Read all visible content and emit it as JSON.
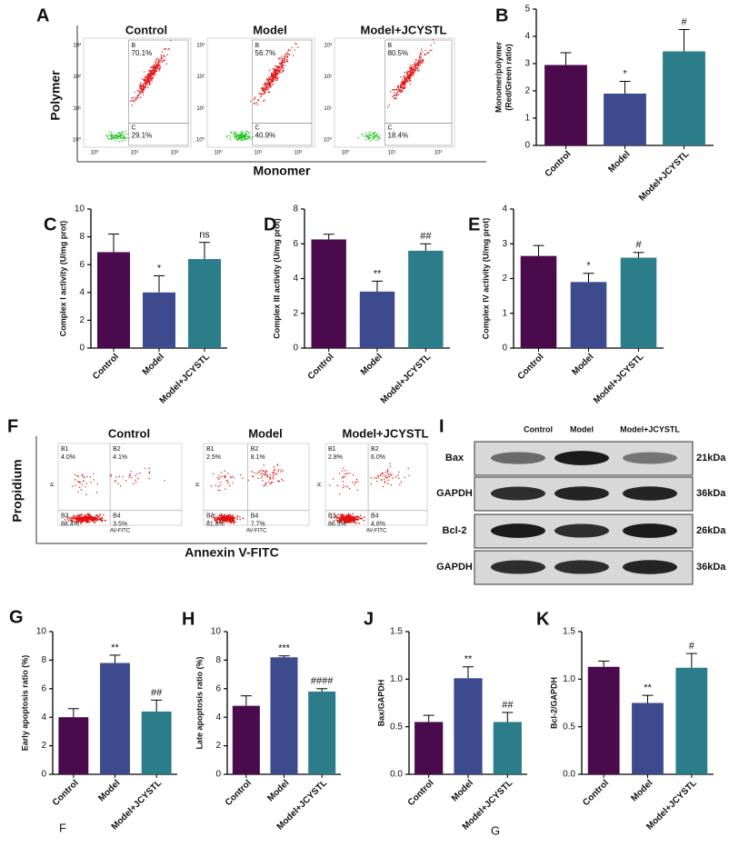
{
  "flow_polymer": {
    "letter": "A",
    "y_label": "Polymer",
    "x_label": "Monomer",
    "axis_ticks": [
      "10⁰",
      "10¹",
      "10²",
      "10³"
    ],
    "plots": [
      {
        "title": "Control",
        "gates": [
          {
            "name": "B",
            "value": "70.1%"
          },
          {
            "name": "C",
            "value": "29.1%"
          }
        ]
      },
      {
        "title": "Model",
        "gates": [
          {
            "name": "B",
            "value": "56.7%"
          },
          {
            "name": "C",
            "value": "40.9%"
          }
        ]
      },
      {
        "title": "Model+JCYSTL",
        "gates": [
          {
            "name": "B",
            "value": "80.5%"
          },
          {
            "name": "C",
            "value": "18.4%"
          }
        ]
      }
    ]
  },
  "flow_apoptosis": {
    "letter": "F",
    "y_label": "Propidium",
    "x_label": "Annexin V-FITC",
    "plot_y_label": "PI",
    "plot_x_label": "AV-FITC",
    "plots": [
      {
        "title": "Control",
        "quadrants": [
          {
            "name": "B1",
            "value": "4.0%"
          },
          {
            "name": "B2",
            "value": "4.1%"
          },
          {
            "name": "B3",
            "value": "88.4%"
          },
          {
            "name": "B4",
            "value": "3.5%"
          }
        ]
      },
      {
        "title": "Model",
        "quadrants": [
          {
            "name": "B1",
            "value": "2.5%"
          },
          {
            "name": "B2",
            "value": "8.1%"
          },
          {
            "name": "B3",
            "value": "81.8%"
          },
          {
            "name": "B4",
            "value": "7.7%"
          }
        ]
      },
      {
        "title": "Model+JCYSTL",
        "quadrants": [
          {
            "name": "B1",
            "value": "2.8%"
          },
          {
            "name": "B2",
            "value": "6.0%"
          },
          {
            "name": "B3",
            "value": "86.5%"
          },
          {
            "name": "B4",
            "value": "4.8%"
          }
        ]
      }
    ]
  },
  "western_blot": {
    "letter": "I",
    "lanes": [
      "Control",
      "Model",
      "Model+JCYSTL"
    ],
    "rows": [
      {
        "protein": "Bax",
        "size": "21kDa"
      },
      {
        "protein": "GAPDH",
        "size": "36kDa"
      },
      {
        "protein": "Bcl-2",
        "size": "26kDa"
      },
      {
        "protein": "GAPDH",
        "size": "36kDa"
      }
    ]
  },
  "captions": [
    "F",
    "G"
  ],
  "chart_data": [
    {
      "type": "bar",
      "letter": "B",
      "ylabel": [
        "Monomer/polymer",
        "(Red/Green ratio)"
      ],
      "categories": [
        "Control",
        "Model",
        "Model+JCYSTL"
      ],
      "values": [
        2.95,
        1.9,
        3.45
      ],
      "errors": [
        0.45,
        0.45,
        0.8
      ],
      "annotations": [
        null,
        "*",
        "#"
      ],
      "colors": [
        "#4a0a4c",
        "#3e4a8e",
        "#2b7d8a"
      ],
      "ylim": [
        0,
        5
      ],
      "yticks": [
        0,
        1,
        2,
        3,
        4,
        5
      ]
    },
    {
      "type": "bar",
      "letter": "C",
      "ylabel": [
        "Complex I activity  (U/mg prot)"
      ],
      "categories": [
        "Control",
        "Model",
        "Model+JCYSTL"
      ],
      "values": [
        6.9,
        4.0,
        6.4
      ],
      "errors": [
        1.3,
        1.2,
        1.2
      ],
      "annotations": [
        null,
        "*",
        "ns"
      ],
      "colors": [
        "#4a0a4c",
        "#3e4a8e",
        "#2b7d8a"
      ],
      "ylim": [
        0,
        10
      ],
      "yticks": [
        0,
        2,
        4,
        6,
        8,
        10
      ]
    },
    {
      "type": "bar",
      "letter": "D",
      "ylabel": [
        "Complex III activity  (U/mg prot)"
      ],
      "categories": [
        "Control",
        "Model",
        "Model+JCYSTL"
      ],
      "values": [
        6.25,
        3.25,
        5.6
      ],
      "errors": [
        0.3,
        0.6,
        0.4
      ],
      "annotations": [
        null,
        "**",
        "##"
      ],
      "colors": [
        "#4a0a4c",
        "#3e4a8e",
        "#2b7d8a"
      ],
      "ylim": [
        0,
        8
      ],
      "yticks": [
        0,
        2,
        4,
        6,
        8
      ]
    },
    {
      "type": "bar",
      "letter": "E",
      "ylabel": [
        "Complex IV activity  (U/mg prot)"
      ],
      "categories": [
        "Control",
        "Model",
        "Model+JCYSTL"
      ],
      "values": [
        2.65,
        1.9,
        2.6
      ],
      "errors": [
        0.3,
        0.25,
        0.15
      ],
      "annotations": [
        null,
        "*",
        "#"
      ],
      "colors": [
        "#4a0a4c",
        "#3e4a8e",
        "#2b7d8a"
      ],
      "ylim": [
        0,
        4
      ],
      "yticks": [
        0,
        1,
        2,
        3,
        4
      ]
    },
    {
      "type": "bar",
      "letter": "G",
      "ylabel": [
        "Early apoptosis ratio (%)"
      ],
      "categories": [
        "Control",
        "Model",
        "Model+JCYSTL"
      ],
      "values": [
        4.0,
        7.8,
        4.4
      ],
      "errors": [
        0.6,
        0.55,
        0.8
      ],
      "annotations": [
        null,
        "**",
        "##"
      ],
      "colors": [
        "#4a0a4c",
        "#3e4a8e",
        "#2b7d8a"
      ],
      "ylim": [
        0,
        10
      ],
      "yticks": [
        0,
        2,
        4,
        6,
        8,
        10
      ]
    },
    {
      "type": "bar",
      "letter": "H",
      "ylabel": [
        "Late apoptosis ratio (%)"
      ],
      "categories": [
        "Control",
        "Model",
        "Model+JCYSTL"
      ],
      "values": [
        4.8,
        8.2,
        5.8
      ],
      "errors": [
        0.7,
        0.1,
        0.2
      ],
      "annotations": [
        null,
        "***",
        "####"
      ],
      "colors": [
        "#4a0a4c",
        "#3e4a8e",
        "#2b7d8a"
      ],
      "ylim": [
        0,
        10
      ],
      "yticks": [
        0,
        2,
        4,
        6,
        8,
        10
      ]
    },
    {
      "type": "bar",
      "letter": "J",
      "ylabel": [
        "Bax/GAPDH"
      ],
      "categories": [
        "Control",
        "Model",
        "Model+JCYSTL"
      ],
      "values": [
        0.55,
        1.01,
        0.55
      ],
      "errors": [
        0.07,
        0.12,
        0.1
      ],
      "annotations": [
        null,
        "**",
        "##"
      ],
      "colors": [
        "#4a0a4c",
        "#3e4a8e",
        "#2b7d8a"
      ],
      "ylim": [
        0,
        1.5
      ],
      "yticks": [
        {
          "value": 0,
          "label": "0.0"
        },
        {
          "value": 0.5,
          "label": "0.5"
        },
        {
          "value": 1,
          "label": "1.0"
        },
        {
          "value": 1.5,
          "label": "1.5"
        }
      ]
    },
    {
      "type": "bar",
      "letter": "K",
      "ylabel": [
        "Bcl-2/GAPDH"
      ],
      "categories": [
        "Control",
        "Model",
        "Model+JCYSTL"
      ],
      "values": [
        1.13,
        0.75,
        1.12
      ],
      "errors": [
        0.06,
        0.08,
        0.15
      ],
      "annotations": [
        null,
        "**",
        "#"
      ],
      "colors": [
        "#4a0a4c",
        "#3e4a8e",
        "#2b7d8a"
      ],
      "ylim": [
        0,
        1.5
      ],
      "yticks": [
        {
          "value": 0,
          "label": "0.0"
        },
        {
          "value": 0.5,
          "label": "0.5"
        },
        {
          "value": 1,
          "label": "1.0"
        },
        {
          "value": 1.5,
          "label": "1.5"
        }
      ]
    }
  ]
}
